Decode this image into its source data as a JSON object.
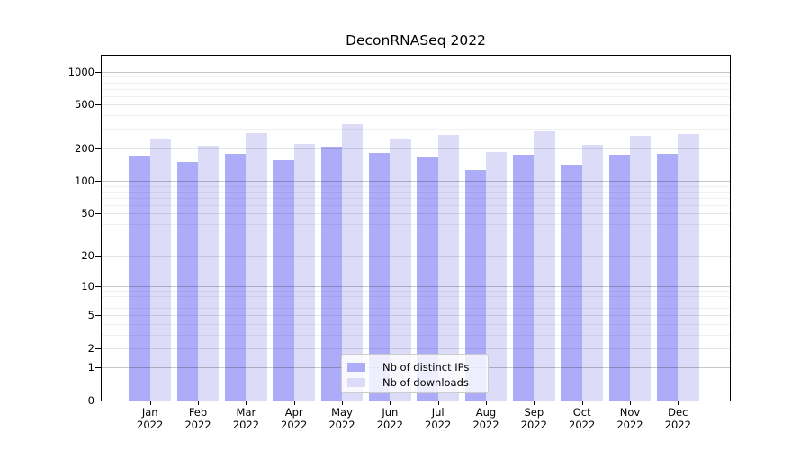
{
  "chart_data": {
    "type": "bar",
    "title": "DeconRNASeq 2022",
    "xlabel": "",
    "ylabel": "",
    "categories": [
      "Jan",
      "Feb",
      "Mar",
      "Apr",
      "May",
      "Jun",
      "Jul",
      "Aug",
      "Sep",
      "Oct",
      "Nov",
      "Dec"
    ],
    "year_label": "2022",
    "series": [
      {
        "name": "Nb of distinct IPs",
        "color": "#acacf8",
        "values": [
          172,
          150,
          179,
          155,
          205,
          182,
          163,
          126,
          173,
          142,
          173,
          179
        ]
      },
      {
        "name": "Nb of downloads",
        "color": "#dcdcf8",
        "values": [
          242,
          209,
          275,
          220,
          335,
          245,
          266,
          184,
          283,
          215,
          259,
          269
        ]
      }
    ],
    "yscale": "log1p",
    "yticks": [
      0,
      1,
      2,
      5,
      10,
      20,
      50,
      100,
      200,
      500,
      1000
    ],
    "ylim": [
      0,
      1400
    ],
    "grid": true,
    "legend_position": "lower-center"
  }
}
